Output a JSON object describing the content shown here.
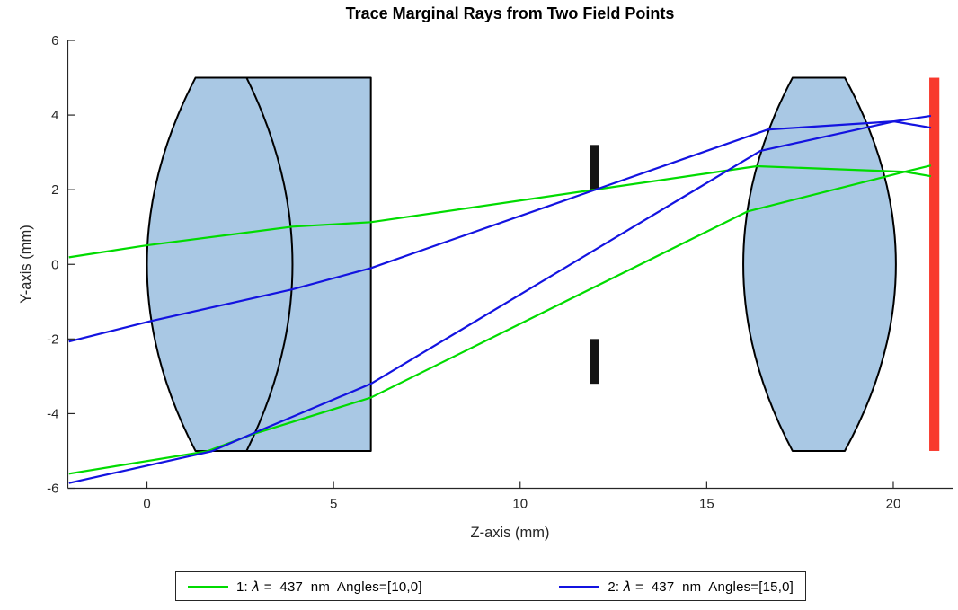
{
  "chart_data": {
    "type": "line",
    "title": "Trace Marginal Rays from Two Field Points",
    "xlabel": "Z-axis (mm)",
    "ylabel": "Y-axis (mm)",
    "xlim": [
      -2.12,
      21.59
    ],
    "ylim": [
      -6,
      6
    ],
    "xticks": [
      0,
      5,
      10,
      15,
      20
    ],
    "yticks": [
      -6,
      -4,
      -2,
      0,
      2,
      4,
      6
    ],
    "grid": false,
    "legend_position": "south-outside",
    "axis_color": "#262626",
    "series": [
      {
        "name": "1: λ = 437 nm Angles=[10,0]",
        "color": "#00DB00",
        "wavelength_nm": 437,
        "field_angles_deg": [
          10,
          0
        ],
        "rays": [
          {
            "label": "upper-marginal",
            "points": [
              [
                -2.09,
                0.19
              ],
              [
                0.0,
                0.51
              ],
              [
                3.9,
                1.01
              ],
              [
                6.0,
                1.13
              ],
              [
                16.34,
                2.63
              ],
              [
                20.31,
                2.48
              ],
              [
                21.01,
                2.36
              ]
            ]
          },
          {
            "label": "lower-marginal",
            "points": [
              [
                -2.09,
                -5.61
              ],
              [
                1.61,
                -5.01
              ],
              [
                2.84,
                -4.55
              ],
              [
                6.0,
                -3.57
              ],
              [
                16.1,
                1.42
              ],
              [
                20.31,
                2.48
              ],
              [
                21.01,
                2.65
              ]
            ]
          }
        ]
      },
      {
        "name": "2: λ = 437 nm Angles=[15,0]",
        "color": "#1313E0",
        "wavelength_nm": 437,
        "field_angles_deg": [
          15,
          0
        ],
        "rays": [
          {
            "label": "upper-marginal",
            "points": [
              [
                -2.09,
                -2.07
              ],
              [
                0.1,
                -1.52
              ],
              [
                3.9,
                -0.67
              ],
              [
                6.0,
                -0.1
              ],
              [
                16.63,
                3.61
              ],
              [
                20.02,
                3.83
              ],
              [
                21.01,
                3.66
              ]
            ]
          },
          {
            "label": "lower-marginal",
            "points": [
              [
                -2.09,
                -5.86
              ],
              [
                1.73,
                -5.01
              ],
              [
                3.01,
                -4.46
              ],
              [
                6.0,
                -3.2
              ],
              [
                16.44,
                3.04
              ],
              [
                20.02,
                3.83
              ],
              [
                21.01,
                3.98
              ]
            ]
          }
        ]
      }
    ],
    "optics": {
      "lens1_doublet": {
        "fill": "#A9C8E4",
        "edge_color": "#000000",
        "half_aperture": 5,
        "front_vertex_z": 0,
        "front_edge_z": 1.3,
        "cemented_edge_z": 2.67,
        "cemented_vertex_z": 3.9,
        "back_flat_z": 6
      },
      "lens2_biconvex": {
        "fill": "#A9C8E4",
        "edge_color": "#000000",
        "half_aperture": 5,
        "front_vertex_z": 15.98,
        "front_edge_z": 17.3,
        "back_edge_z": 18.7,
        "back_vertex_z": 20.07
      },
      "aperture_stop": {
        "color": "#141414",
        "z": 12,
        "half_width_z": 0.12,
        "inner_y": 2.0,
        "outer_y": 3.2
      },
      "image_plane": {
        "color": "#F8392D",
        "z_center": 21.1,
        "half_width_z": 0.135,
        "half_height": 5
      }
    }
  },
  "legend": {
    "entries": [
      {
        "prefix": "1: ",
        "lambda": "λ",
        "suffix": " =  437  nm  Angles=[10,0]",
        "color": "#00DB00"
      },
      {
        "prefix": "2: ",
        "lambda": "λ",
        "suffix": " =  437  nm  Angles=[15,0]",
        "color": "#1313E0"
      }
    ]
  }
}
